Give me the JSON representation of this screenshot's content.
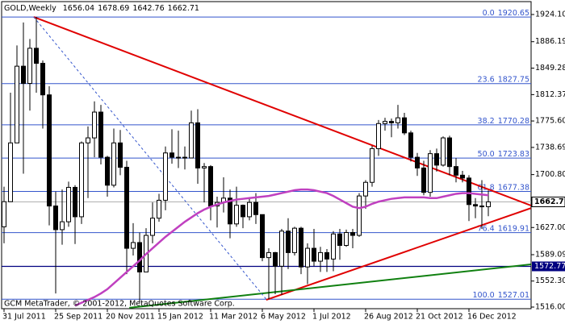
{
  "chart_data": {
    "type": "candlestick",
    "title": "GOLD,Weekly",
    "footer": "GCM MetaTrader, © 2001-2012, MetaQuotes Software Corp.",
    "categories": [
      "31 Jul 2011",
      null,
      null,
      null,
      null,
      null,
      null,
      null,
      "25 Sep 2011",
      null,
      null,
      null,
      null,
      null,
      null,
      null,
      "20 Nov 2011",
      null,
      null,
      null,
      null,
      null,
      null,
      null,
      "15 Jan 2012",
      null,
      null,
      null,
      null,
      null,
      null,
      null,
      "11 Mar 2012",
      null,
      null,
      null,
      null,
      null,
      null,
      null,
      "6 May 2012",
      null,
      null,
      null,
      null,
      null,
      null,
      null,
      "1 Jul 2012",
      null,
      null,
      null,
      null,
      null,
      null,
      null,
      "26 Aug 2012",
      null,
      null,
      null,
      null,
      null,
      null,
      null,
      "21 Oct 2012",
      null,
      null,
      null,
      null,
      null,
      null,
      null,
      "16 Dec 2012",
      null,
      null,
      null
    ],
    "open": [
      1628,
      1663,
      1745,
      1852,
      1828,
      1877,
      1856,
      1812,
      1657,
      1624,
      1635,
      1683,
      1642,
      1745,
      1752,
      1788,
      1725,
      1686,
      1745,
      1711,
      1598,
      1606,
      1565,
      1616,
      1640,
      1665,
      1731,
      1725,
      1725,
      1724,
      1773,
      1710,
      1712,
      1657,
      1662,
      1668,
      1632,
      1658,
      1642,
      1662,
      1645,
      1585,
      1592,
      1573,
      1622,
      1592,
      1626,
      1572,
      1598,
      1580,
      1592,
      1583,
      1618,
      1602,
      1620,
      1616,
      1671,
      1690,
      1737,
      1772,
      1775,
      1773,
      1780,
      1759,
      1725,
      1710,
      1676,
      1730,
      1714,
      1752,
      1712,
      1700,
      1696,
      1659,
      1657,
      1656.04
    ],
    "high": [
      1684,
      1815,
      1881,
      1913,
      1890,
      1920.65,
      1860,
      1824,
      1677,
      1680,
      1691,
      1686,
      1747,
      1768,
      1803,
      1798,
      1727,
      1765,
      1763,
      1720,
      1633,
      1620,
      1626,
      1662,
      1674,
      1740,
      1764,
      1762,
      1740,
      1790,
      1792,
      1717,
      1714,
      1670,
      1697,
      1680,
      1684,
      1659,
      1669,
      1675,
      1645,
      1598,
      1593,
      1625,
      1640,
      1628,
      1628,
      1605,
      1625,
      1600,
      1597,
      1622,
      1625,
      1624,
      1625,
      1675,
      1693,
      1741,
      1777,
      1780,
      1779,
      1798,
      1787,
      1762,
      1731,
      1720,
      1735,
      1737,
      1754,
      1755,
      1724,
      1706,
      1700,
      1668,
      1693,
      1678.69
    ],
    "low": [
      1605,
      1663,
      1745,
      1702,
      1790,
      1815,
      1765,
      1630,
      1535,
      1603,
      1628,
      1604,
      1632,
      1668,
      1725,
      1715,
      1670,
      1683,
      1700,
      1562,
      1588,
      1523,
      1565,
      1605,
      1635,
      1651,
      1716,
      1710,
      1708,
      1724,
      1688,
      1662,
      1637,
      1627,
      1648,
      1612,
      1628,
      1626,
      1637,
      1632,
      1580,
      1527.01,
      1534,
      1533,
      1569,
      1588,
      1562,
      1548,
      1573,
      1565,
      1565,
      1566,
      1582,
      1600,
      1598,
      1614,
      1653,
      1684,
      1727,
      1762,
      1753,
      1765,
      1756,
      1719,
      1699,
      1672,
      1670,
      1705,
      1712,
      1700,
      1690,
      1690,
      1636,
      1640,
      1625,
      1642.76
    ],
    "close": [
      1663,
      1745,
      1852,
      1828,
      1877,
      1856,
      1812,
      1657,
      1624,
      1635,
      1683,
      1642,
      1745,
      1752,
      1788,
      1725,
      1686,
      1745,
      1711,
      1598,
      1606,
      1565,
      1616,
      1640,
      1665,
      1731,
      1725,
      1725,
      1724,
      1773,
      1710,
      1712,
      1657,
      1662,
      1668,
      1632,
      1658,
      1642,
      1662,
      1645,
      1585,
      1592,
      1573,
      1622,
      1592,
      1626,
      1572,
      1598,
      1580,
      1592,
      1583,
      1618,
      1602,
      1620,
      1616,
      1671,
      1690,
      1737,
      1772,
      1775,
      1773,
      1780,
      1759,
      1725,
      1710,
      1676,
      1730,
      1714,
      1752,
      1712,
      1700,
      1696,
      1659,
      1657,
      1656,
      1662.71
    ],
    "moving_average": {
      "color": "#c040c0",
      "values": [
        null,
        null,
        null,
        null,
        null,
        null,
        null,
        null,
        null,
        null,
        null,
        1518,
        1522,
        1526,
        1530,
        1535,
        1541,
        1549,
        1557,
        1565,
        1573,
        1581,
        1590,
        1598,
        1606,
        1614,
        1621,
        1628,
        1635,
        1641,
        1647,
        1652,
        1656,
        1659,
        1662,
        1664,
        1666,
        1667,
        1668,
        1669,
        1670,
        1671,
        1673,
        1675,
        1677,
        1679,
        1680,
        1680,
        1679,
        1677,
        1675,
        1671,
        1666,
        1661,
        1656,
        1654,
        1656,
        1660,
        1663,
        1665,
        1667,
        1668,
        1669,
        1669,
        1669,
        1669,
        1668,
        1668,
        1670,
        1672,
        1674,
        1675,
        1675,
        1674,
        1673,
        1672
      ]
    },
    "ylim": [
      1513.75,
      1942.09
    ],
    "yticks": [
      {
        "value": 1924.1,
        "label": "1924.10"
      },
      1886.19,
      1849.28,
      1812.37,
      {
        "value": 1775.6,
        "label": "1775.60"
      },
      1738.69,
      {
        "value": 1700.8,
        "label": "1700.80"
      },
      {
        "value": 1627,
        "label": "1627.00"
      },
      1589.09,
      {
        "value": 1552.3,
        "label": "1552.30"
      },
      {
        "value": 1516,
        "label": "1516.00"
      }
    ],
    "fibonacci": {
      "color": "#3355cc",
      "levels": [
        {
          "level": "0.0",
          "price": 1920.65
        },
        {
          "level": "23.6",
          "price": 1827.75
        },
        {
          "level": "38.2",
          "price": 1770.28
        },
        {
          "level": "50.0",
          "price": 1723.83
        },
        {
          "level": "61.8",
          "price": 1677.38
        },
        {
          "level": "76.4",
          "price": 1619.91
        },
        {
          "level": "100.0",
          "price": 1527.01
        }
      ]
    },
    "horizontal_line": {
      "color": "#000080",
      "price": 1572.77
    },
    "bid_line": {
      "color": "#b0b0b0",
      "price": 1662.71
    },
    "trendlines": [
      {
        "color": "#e00000",
        "width": 2,
        "x1": 4.6,
        "y1": 1920.65,
        "x2": 81.6,
        "y2": 1657.7
      },
      {
        "color": "#e00000",
        "width": 2,
        "x1": 40.6,
        "y1": 1526,
        "x2": 81.6,
        "y2": 1654
      },
      {
        "color": "#108010",
        "width": 2,
        "x1": 19.4,
        "y1": 1515,
        "x2": 81.6,
        "y2": 1575.6
      },
      {
        "color": "#3355cc",
        "width": 1,
        "dash": true,
        "x1": 4.6,
        "y1": 1920.65,
        "x2": 40.6,
        "y2": 1527
      }
    ]
  }
}
